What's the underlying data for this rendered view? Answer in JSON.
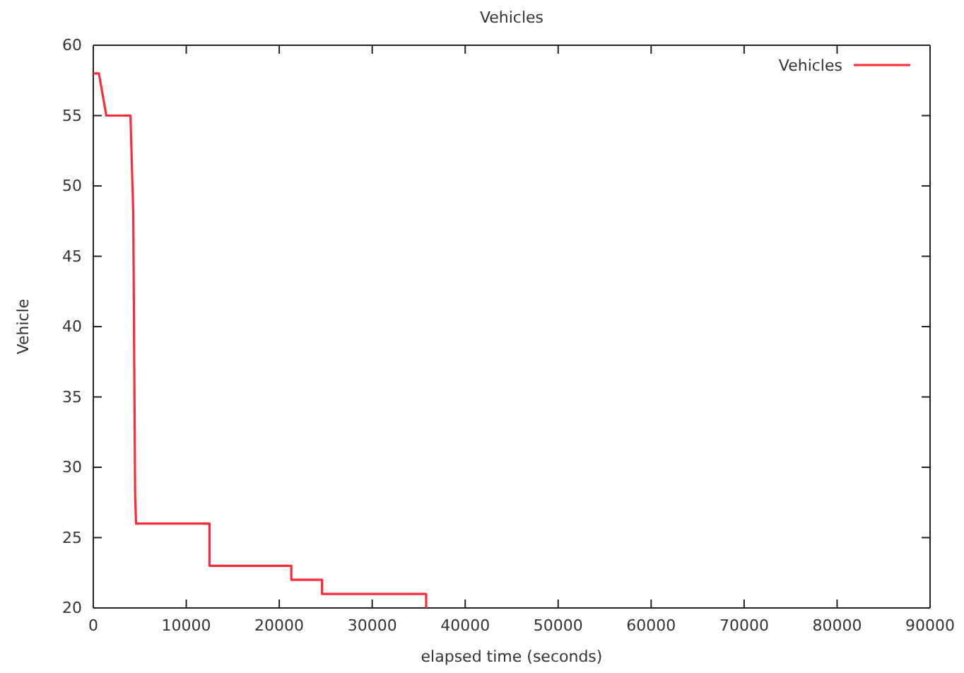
{
  "chart_data": {
    "type": "line",
    "title": "Vehicles",
    "xlabel": "elapsed time (seconds)",
    "ylabel": "Vehicle",
    "x": [
      0,
      600,
      1400,
      4000,
      4300,
      4500,
      4600,
      12500,
      12500,
      21300,
      21300,
      24600,
      24600,
      35800,
      35800
    ],
    "series": [
      {
        "name": "Vehicles",
        "color": "#ff2a3a",
        "values": [
          58,
          58,
          55,
          55,
          48,
          28,
          26,
          26,
          23,
          23,
          22,
          22,
          21,
          21,
          20
        ]
      }
    ],
    "xlim": [
      0,
      90000
    ],
    "xticks": [
      0,
      10000,
      20000,
      30000,
      40000,
      50000,
      60000,
      70000,
      80000,
      90000
    ],
    "ylim": [
      20,
      60
    ],
    "yticks": [
      20,
      25,
      30,
      35,
      40,
      45,
      50,
      55,
      60
    ],
    "grid": false,
    "legend": "top right",
    "marker": "none",
    "line_style": "solid"
  }
}
